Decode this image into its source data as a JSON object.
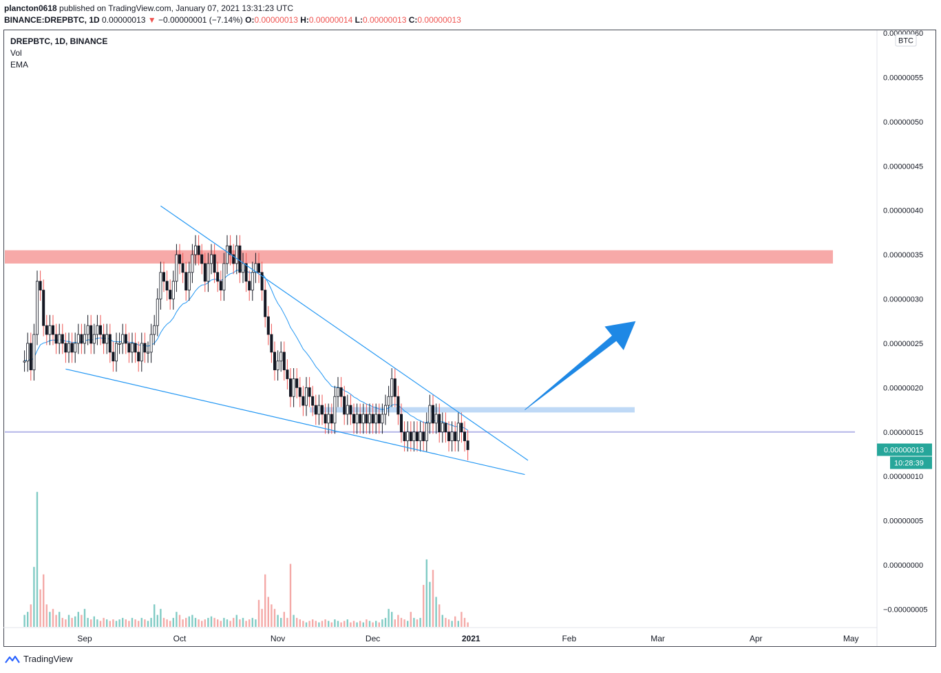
{
  "header": {
    "publisher": "plancton0618",
    "published_text": "published on TradingView.com, January 07, 2021 13:31:23 UTC",
    "symbol_full": "BINANCE:DREPBTC, 1D",
    "last": "0.00000013",
    "change_arrow": "▼",
    "change": "−0.00000001 (−7.14%)",
    "o_label": "O:",
    "o": "0.00000013",
    "h_label": "H:",
    "h": "0.00000014",
    "l_label": "L:",
    "l": "0.00000013",
    "c_label": "C:",
    "c": "0.00000013"
  },
  "legend": {
    "title": "DREPBTC, 1D, BINANCE",
    "vol": "Vol",
    "ema": "EMA"
  },
  "price_axis": {
    "currency": "BTC",
    "last_price_label": "0.00000013",
    "countdown": "10:28:39"
  },
  "footer": {
    "brand": "TradingView"
  },
  "colors": {
    "up": "#26a69a",
    "down": "#ef5350",
    "candle_body_up": "#ffffff",
    "candle_body_down": "#131722",
    "ema": "#2196f3",
    "trendline": "#2196f3",
    "resistance_zone": "#f7a9a8",
    "support_zone": "#b4d2f5",
    "horizontal_line": "#b3b5e8",
    "arrow": "#1e88e5",
    "last_price_bg": "#26a69a"
  },
  "chart_data": {
    "type": "candlestick",
    "symbol": "DREPBTC",
    "timeframe": "1D",
    "exchange": "BINANCE",
    "unit": "BTC",
    "x_ticks": [
      "Sep",
      "Oct",
      "Nov",
      "Dec",
      "2021",
      "Feb",
      "Mar",
      "Apr",
      "May"
    ],
    "x_tick_dates": [
      "2020-09-01",
      "2020-10-01",
      "2020-11-01",
      "2020-12-01",
      "2021-01-01",
      "2021-02-01",
      "2021-03-01",
      "2021-04-01",
      "2021-05-01"
    ],
    "y_ticks": [
      6e-07,
      5.5e-07,
      5e-07,
      4.5e-07,
      4e-07,
      3.5e-07,
      3e-07,
      2.5e-07,
      2e-07,
      1.5e-07,
      1e-07,
      5e-08,
      0.0,
      -5e-08
    ],
    "y_tick_labels": [
      "0.00000060",
      "0.00000055",
      "0.00000050",
      "0.00000045",
      "0.00000040",
      "0.00000035",
      "0.00000030",
      "0.00000025",
      "0.00000020",
      "0.00000015",
      "0.00000010",
      "0.00000005",
      "0.00000000",
      "−0.00000005"
    ],
    "ylim": [
      -7e-08,
      6e-07
    ],
    "closes": [
      2.3e-07,
      2.5e-07,
      2.2e-07,
      2.6e-07,
      3.2e-07,
      3.1e-07,
      2.7e-07,
      2.6e-07,
      2.7e-07,
      2.6e-07,
      2.5e-07,
      2.6e-07,
      2.5e-07,
      2.4e-07,
      2.5e-07,
      2.4e-07,
      2.5e-07,
      2.6e-07,
      2.5e-07,
      2.6e-07,
      2.7e-07,
      2.5e-07,
      2.6e-07,
      2.7e-07,
      2.6e-07,
      2.5e-07,
      2.6e-07,
      2.4e-07,
      2.3e-07,
      2.5e-07,
      2.5e-07,
      2.6e-07,
      2.5e-07,
      2.4e-07,
      2.5e-07,
      2.4e-07,
      2.3e-07,
      2.5e-07,
      2.4e-07,
      2.4e-07,
      2.6e-07,
      2.7e-07,
      3e-07,
      3.3e-07,
      3.2e-07,
      3.1e-07,
      3e-07,
      3.2e-07,
      3.5e-07,
      3.4e-07,
      3.3e-07,
      3.1e-07,
      3.3e-07,
      3.5e-07,
      3.6e-07,
      3.5e-07,
      3.4e-07,
      3.2e-07,
      3.4e-07,
      3.5e-07,
      3.3e-07,
      3.2e-07,
      3.1e-07,
      3.4e-07,
      3.6e-07,
      3.5e-07,
      3.4e-07,
      3.6e-07,
      3.3e-07,
      3.4e-07,
      3.2e-07,
      3.1e-07,
      3.3e-07,
      3.4e-07,
      3.3e-07,
      3.1e-07,
      2.8e-07,
      2.6e-07,
      2.4e-07,
      2.2e-07,
      2.3e-07,
      2.4e-07,
      2.2e-07,
      2.1e-07,
      1.9e-07,
      2.1e-07,
      2e-07,
      1.9e-07,
      1.8e-07,
      2e-07,
      1.9e-07,
      1.8e-07,
      1.7e-07,
      1.8e-07,
      1.7e-07,
      1.6e-07,
      1.7e-07,
      1.6e-07,
      1.9e-07,
      2e-07,
      1.9e-07,
      1.7e-07,
      1.8e-07,
      1.7e-07,
      1.6e-07,
      1.7e-07,
      1.6e-07,
      1.7e-07,
      1.6e-07,
      1.7e-07,
      1.6e-07,
      1.7e-07,
      1.6e-07,
      1.7e-07,
      1.8e-07,
      1.9e-07,
      2.1e-07,
      1.9e-07,
      1.7e-07,
      1.5e-07,
      1.4e-07,
      1.5e-07,
      1.4e-07,
      1.5e-07,
      1.4e-07,
      1.5e-07,
      1.4e-07,
      1.6e-07,
      1.8e-07,
      1.6e-07,
      1.7e-07,
      1.5e-07,
      1.6e-07,
      1.5e-07,
      1.4e-07,
      1.5e-07,
      1.4e-07,
      1.6e-07,
      1.5e-07,
      1.4e-07,
      1.3e-07
    ],
    "volume_heights_rel": [
      0.08,
      0.1,
      0.15,
      0.4,
      0.9,
      0.25,
      0.35,
      0.15,
      0.1,
      0.12,
      0.08,
      0.1,
      0.06,
      0.05,
      0.08,
      0.06,
      0.07,
      0.1,
      0.08,
      0.12,
      0.06,
      0.05,
      0.07,
      0.05,
      0.04,
      0.06,
      0.05,
      0.04,
      0.05,
      0.04,
      0.05,
      0.06,
      0.05,
      0.04,
      0.06,
      0.05,
      0.04,
      0.06,
      0.05,
      0.04,
      0.06,
      0.15,
      0.08,
      0.12,
      0.06,
      0.05,
      0.04,
      0.06,
      0.1,
      0.08,
      0.05,
      0.06,
      0.07,
      0.08,
      0.06,
      0.05,
      0.04,
      0.05,
      0.06,
      0.07,
      0.06,
      0.05,
      0.04,
      0.06,
      0.05,
      0.04,
      0.06,
      0.08,
      0.05,
      0.06,
      0.04,
      0.05,
      0.06,
      0.05,
      0.18,
      0.12,
      0.35,
      0.2,
      0.15,
      0.12,
      0.08,
      0.06,
      0.1,
      0.06,
      0.42,
      0.08,
      0.06,
      0.05,
      0.04,
      0.03,
      0.04,
      0.05,
      0.04,
      0.03,
      0.04,
      0.05,
      0.04,
      0.03,
      0.05,
      0.04,
      0.03,
      0.04,
      0.05,
      0.03,
      0.04,
      0.03,
      0.04,
      0.03,
      0.05,
      0.04,
      0.03,
      0.04,
      0.03,
      0.05,
      0.06,
      0.12,
      0.1,
      0.05,
      0.08,
      0.06,
      0.05,
      0.04,
      0.1,
      0.06,
      0.05,
      0.06,
      0.28,
      0.45,
      0.3,
      0.38,
      0.2,
      0.15,
      0.08,
      0.06,
      0.05,
      0.04,
      0.07,
      0.04,
      0.1,
      0.06,
      0.03
    ],
    "annotations": {
      "resistance_zone": [
        3.4e-07,
        3.55e-07
      ],
      "support_zone": [
        1.72e-07,
        1.78e-07
      ],
      "horizontal_line": 1.5e-07,
      "wedge_upper": [
        [
          "2020-09-25",
          4.05e-07
        ],
        [
          "2021-01-19",
          1.18e-07
        ]
      ],
      "wedge_lower": [
        [
          "2020-08-26",
          2.21e-07
        ],
        [
          "2021-01-18",
          1.02e-07
        ]
      ],
      "arrow": [
        [
          "2021-01-18",
          1.75e-07
        ],
        [
          "2021-02-22",
          2.75e-07
        ]
      ]
    }
  }
}
